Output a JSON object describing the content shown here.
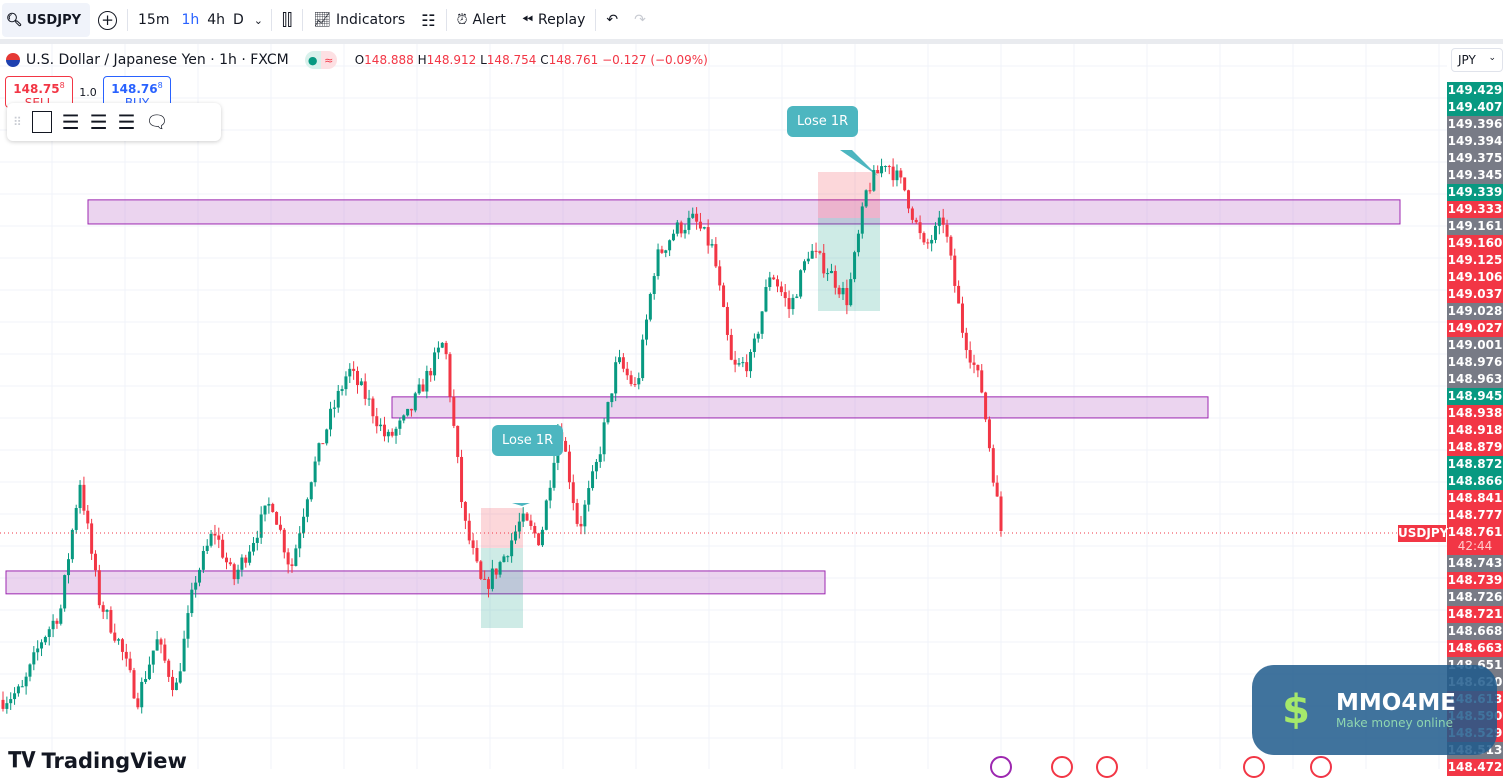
{
  "toolbar": {
    "symbol": "USDJPY",
    "intervals": [
      "15m",
      "1h",
      "4h",
      "D"
    ],
    "active_interval": "1h",
    "indicators": "Indicators",
    "alert": "Alert",
    "replay": "Replay"
  },
  "legend": {
    "title": "U.S. Dollar / Japanese Yen · 1h · FXCM",
    "o_label": "O",
    "o": "148.888",
    "h_label": "H",
    "h": "148.912",
    "l_label": "L",
    "l": "148.754",
    "c_label": "C",
    "c": "148.761",
    "change": "−0.127 (−0.09%)"
  },
  "trade": {
    "sell_price": "148.75",
    "sell_sup": "8",
    "sell_label": "SELL",
    "qty": "1.0",
    "buy_price": "148.76",
    "buy_sup": "8",
    "buy_label": "BUY"
  },
  "axis": {
    "currency": "JPY",
    "current_symbol": "USDJPY",
    "current_price": "148.761",
    "countdown": "42:44",
    "labels": [
      [
        "149.429",
        "green"
      ],
      [
        "149.407",
        "green"
      ],
      [
        "149.396",
        "gray"
      ],
      [
        "149.394",
        "gray"
      ],
      [
        "149.375",
        "gray"
      ],
      [
        "149.345",
        "gray"
      ],
      [
        "149.339",
        "green"
      ],
      [
        "149.333",
        "red"
      ],
      [
        "149.161",
        "gray"
      ],
      [
        "149.160",
        "red"
      ],
      [
        "149.125",
        "red"
      ],
      [
        "149.106",
        "red"
      ],
      [
        "149.037",
        "red"
      ],
      [
        "149.028",
        "gray"
      ],
      [
        "149.027",
        "red"
      ],
      [
        "149.001",
        "gray"
      ],
      [
        "148.976",
        "gray"
      ],
      [
        "148.963",
        "gray"
      ],
      [
        "148.945",
        "green"
      ],
      [
        "148.938",
        "red"
      ],
      [
        "148.918",
        "red"
      ],
      [
        "148.879",
        "red"
      ],
      [
        "148.872",
        "green"
      ],
      [
        "148.866",
        "green"
      ],
      [
        "148.841",
        "red"
      ],
      [
        "148.777",
        "red"
      ],
      [
        "CUR",
        "cur"
      ],
      [
        "148.743",
        "gray"
      ],
      [
        "148.739",
        "red"
      ],
      [
        "148.726",
        "gray"
      ],
      [
        "148.721",
        "red"
      ],
      [
        "148.668",
        "gray"
      ],
      [
        "148.663",
        "red"
      ],
      [
        "148.651",
        "gray"
      ],
      [
        "148.620",
        "gray"
      ],
      [
        "148.613",
        "red"
      ],
      [
        "148.590",
        "red"
      ],
      [
        "148.529",
        "red"
      ],
      [
        "148.513",
        "gray"
      ],
      [
        "148.472",
        "red"
      ]
    ]
  },
  "colors": {
    "up": "#089981",
    "down": "#f23645",
    "gray": "#787b86",
    "zone": "#e1bee7",
    "zone_border": "#9c27b0",
    "callout": "#4db6c0"
  },
  "chart_data": {
    "type": "candlestick",
    "symbol": "USDJPY",
    "interval": "1h",
    "close_path": [
      148.484,
      148.5,
      148.583,
      148.633,
      148.849,
      148.65,
      148.583,
      148.484,
      148.583,
      148.5,
      148.683,
      148.766,
      148.683,
      148.749,
      148.816,
      148.7,
      148.849,
      148.949,
      149.032,
      148.982,
      148.915,
      148.949,
      149.015,
      149.081,
      148.783,
      148.666,
      148.716,
      148.783,
      148.749,
      148.949,
      148.766,
      148.882,
      149.048,
      148.998,
      149.214,
      149.264,
      149.281,
      149.231,
      149.032,
      149.048,
      149.198,
      149.131,
      149.231,
      149.198,
      149.148,
      149.33,
      149.38,
      149.33,
      149.231,
      149.281,
      149.098,
      148.998,
      148.766
    ],
    "zones": [
      [
        149.274,
        149.314
      ],
      [
        148.952,
        148.987
      ],
      [
        148.66,
        148.698
      ]
    ]
  },
  "annotations": [
    "Lose 1R",
    "Lose 1R"
  ],
  "branding": {
    "logo": "TradingView",
    "watermark_title": "MMO4ME",
    "watermark_sub": "Make money online"
  }
}
